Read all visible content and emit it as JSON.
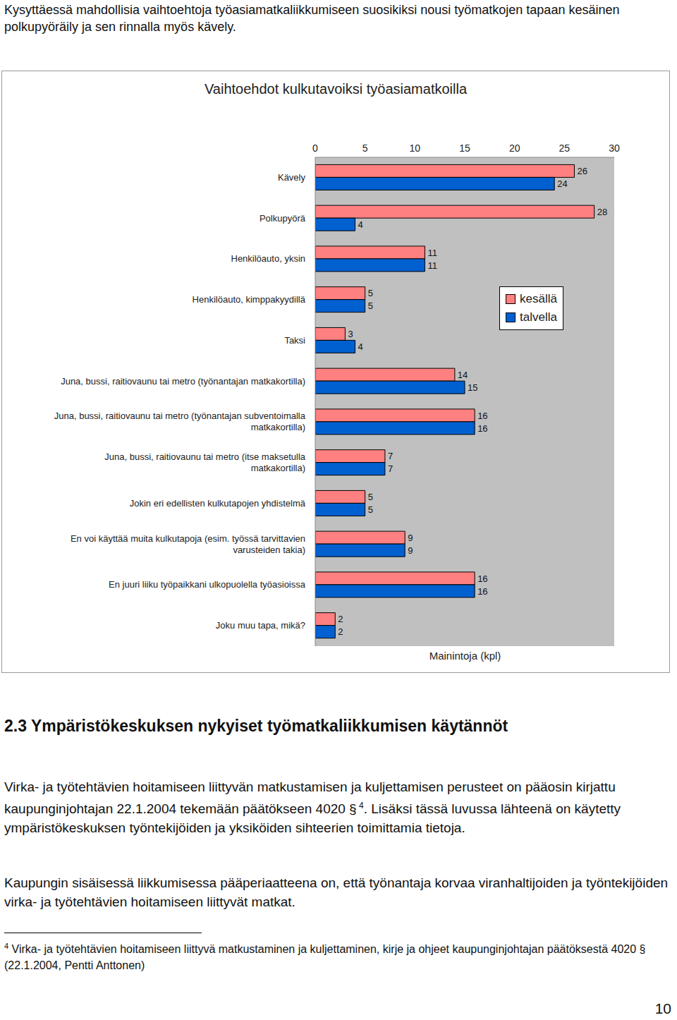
{
  "intro": "Kysyttäessä mahdollisia vaihtoehtoja työasiamatkaliikkumiseen suosikiksi nousi työmatkojen tapaan kesäinen polkupyöräily ja sen rinnalla myös kävely.",
  "chart_data": {
    "type": "bar",
    "orientation": "horizontal",
    "title": "Vaihtoehdot kulkutavoiksi työasiamatkoilla",
    "xlabel": "Mainintoja (kpl)",
    "categories": [
      "Kävely",
      "Polkupyörä",
      "Henkilöauto, yksin",
      "Henkilöauto, kimppakyydillä",
      "Taksi",
      "Juna, bussi, raitiovaunu tai metro (työnantajan matkakortilla)",
      "Juna, bussi, raitiovaunu tai metro (työnantajan subventoimalla matkakortilla)",
      "Juna, bussi, raitiovaunu tai metro (itse maksetulla matkakortilla)",
      "Jokin eri edellisten kulkutapojen yhdistelmä",
      "En voi käyttää muita kulkutapoja (esim. työssä tarvittavien varusteiden takia)",
      "En juuri liiku työpaikkani ulkopuolella työasioissa",
      "Joku muu tapa, mikä?"
    ],
    "series": [
      {
        "name": "kesällä",
        "color": "#ff8080",
        "values": [
          26,
          28,
          11,
          5,
          3,
          14,
          16,
          7,
          5,
          9,
          16,
          2
        ]
      },
      {
        "name": "talvella",
        "color": "#0060d0",
        "values": [
          24,
          4,
          11,
          5,
          4,
          15,
          16,
          7,
          5,
          9,
          16,
          2
        ]
      }
    ],
    "xlim": [
      0,
      30
    ],
    "xticks": [
      0,
      5,
      10,
      15,
      20,
      25,
      30
    ],
    "grid": false,
    "data_labels": true,
    "legend": "right"
  },
  "heading": "2.3 Ympäristökeskuksen nykyiset työmatkaliikkumisen käytännöt",
  "paragraphs": [
    {
      "text": "Virka- ja työtehtävien hoitamiseen liittyvän matkustamisen ja kuljettamisen perusteet on pääosin kirjattu kaupunginjohtajan 22.1.2004 tekemään päätökseen 4020 §",
      "footnote_ref": "4",
      "text_after": ". Lisäksi tässä luvussa lähteenä on käytetty ympäristökeskuksen työntekijöiden ja yksiköiden sihteerien toimittamia tietoja."
    },
    {
      "text": "Kaupungin sisäisessä liikkumisessa pääperiaatteena on, että työnantaja korvaa viranhaltijoiden ja työntekijöiden virka- ja työtehtävien hoitamiseen liittyvät matkat."
    }
  ],
  "footnote": {
    "marker": "4",
    "text": "Virka- ja työtehtävien hoitamiseen liittyvä matkustaminen ja kuljettaminen, kirje ja ohjeet kaupunginjohtajan päätöksestä 4020 § (22.1.2004, Pentti Anttonen)"
  },
  "page_number": 10
}
